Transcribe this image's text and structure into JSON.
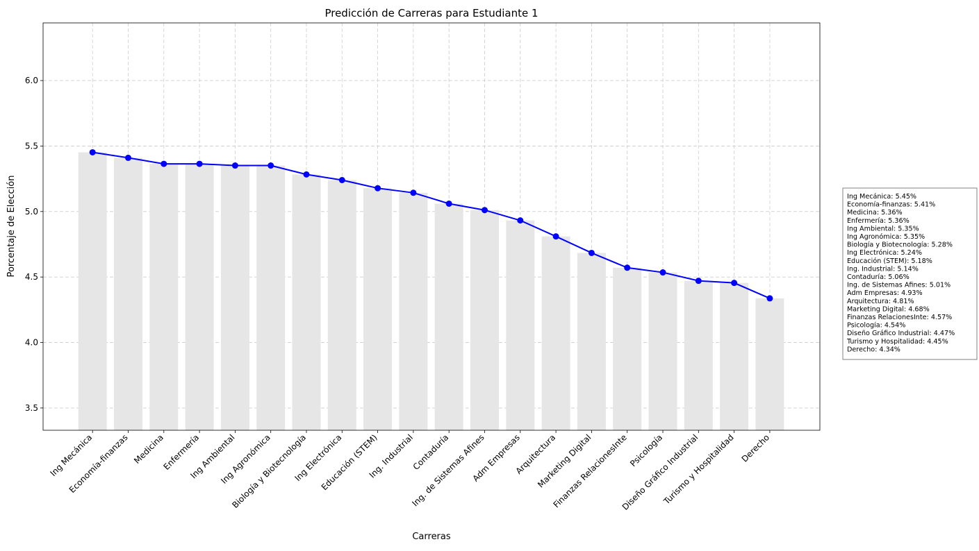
{
  "chart_data": {
    "type": "bar",
    "title": "Predicción de Carreras para Estudiante 1",
    "xlabel": "Carreras",
    "ylabel": "Porcentaje de Elección",
    "ylim": [
      3.33,
      6.44
    ],
    "y_ticks": [
      "3.5",
      "4.0",
      "4.5",
      "5.0",
      "5.5",
      "6.0"
    ],
    "y_tick_values": [
      3.5,
      4.0,
      4.5,
      5.0,
      5.5,
      6.0
    ],
    "grid": true,
    "legend_placement": "right",
    "categories": [
      "Ing Mecánica",
      "Economía-finanzas",
      "Medicina",
      "Enfermería",
      "Ing Ambiental",
      "Ing Agronómica",
      "Biología y Biotecnología",
      "Ing Electrónica",
      "Educación (STEM)",
      "Ing. Industrial",
      "Contaduría",
      "Ing. de Sistemas Afines",
      "Adm Empresas",
      "Arquitectura",
      "Marketing Digital",
      "Finanzas RelacionesInte",
      "Psicología",
      "Diseño Gráfico Industrial",
      "Turismo y Hospitalidad",
      "Derecho"
    ],
    "values": [
      5.452,
      5.41,
      5.364,
      5.364,
      5.351,
      5.351,
      5.283,
      5.24,
      5.178,
      5.143,
      5.06,
      5.011,
      4.932,
      4.81,
      4.684,
      4.571,
      4.535,
      4.471,
      4.455,
      4.337
    ],
    "series": [
      {
        "kind": "bar",
        "values": [
          5.452,
          5.41,
          5.364,
          5.364,
          5.351,
          5.351,
          5.283,
          5.24,
          5.178,
          5.143,
          5.06,
          5.011,
          4.932,
          4.81,
          4.684,
          4.571,
          4.535,
          4.471,
          4.455,
          4.337
        ]
      },
      {
        "kind": "line",
        "values": [
          5.452,
          5.41,
          5.364,
          5.364,
          5.351,
          5.351,
          5.283,
          5.24,
          5.178,
          5.143,
          5.06,
          5.011,
          4.932,
          4.81,
          4.684,
          4.571,
          4.535,
          4.471,
          4.455,
          4.337
        ]
      }
    ],
    "legend_entries": [
      "Ing Mecánica: 5.45%",
      "Economía-finanzas: 5.41%",
      "Medicina: 5.36%",
      "Enfermería: 5.36%",
      "Ing Ambiental: 5.35%",
      "Ing Agronómica: 5.35%",
      "Biología y Biotecnología: 5.28%",
      "Ing Electrónica: 5.24%",
      "Educación (STEM): 5.18%",
      "Ing. Industrial: 5.14%",
      "Contaduría: 5.06%",
      "Ing. de Sistemas Afines: 5.01%",
      "Adm Empresas: 4.93%",
      "Arquitectura: 4.81%",
      "Marketing Digital: 4.68%",
      "Finanzas RelacionesInte: 4.57%",
      "Psicología: 4.54%",
      "Diseño Gráfico Industrial: 4.47%",
      "Turismo y Hospitalidad: 4.45%",
      "Derecho: 4.34%"
    ],
    "colors": {
      "bar": "#e6e6e6",
      "line": "#0000ff",
      "grid": "#cccccc",
      "axes": "#000000",
      "legend_border": "#808080"
    }
  }
}
